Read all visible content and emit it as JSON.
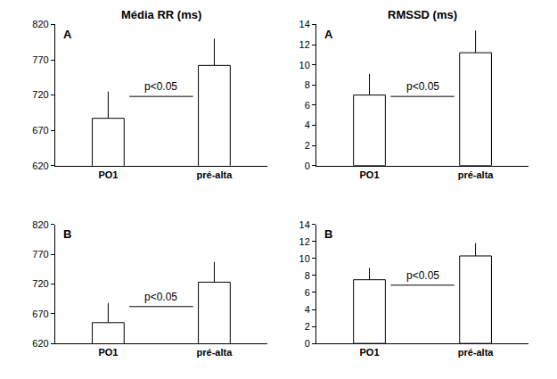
{
  "chart_data": [
    {
      "type": "bar",
      "title": "Média RR (ms)",
      "categories": [
        "PO1",
        "pré-alta"
      ],
      "values": [
        687,
        762
      ],
      "errors": [
        38,
        38
      ],
      "color": "#ffffff",
      "ylim": [
        620,
        820
      ],
      "yticks": [
        620,
        670,
        720,
        770,
        820
      ],
      "grid": false,
      "annotations": [
        {
          "text": "A"
        },
        {
          "text": "p<0.05"
        }
      ]
    },
    {
      "type": "bar",
      "title": "RMSSD (ms)",
      "categories": [
        "PO1",
        "pré-alta"
      ],
      "values": [
        7.0,
        11.2
      ],
      "errors": [
        2.1,
        2.2
      ],
      "color": "#ffffff",
      "ylim": [
        0,
        14
      ],
      "yticks": [
        0,
        2,
        4,
        6,
        8,
        10,
        12,
        14
      ],
      "grid": false,
      "annotations": [
        {
          "text": "A"
        },
        {
          "text": "p<0.05"
        }
      ]
    },
    {
      "type": "bar",
      "categories": [
        "PO1",
        "pré-alta"
      ],
      "values": [
        655,
        723
      ],
      "errors": [
        33,
        34
      ],
      "color": "#ffffff",
      "ylim": [
        620,
        820
      ],
      "yticks": [
        620,
        670,
        720,
        770,
        820
      ],
      "grid": false,
      "annotations": [
        {
          "text": "B"
        },
        {
          "text": "p<0.05"
        }
      ]
    },
    {
      "type": "bar",
      "categories": [
        "PO1",
        "pré-alta"
      ],
      "values": [
        7.5,
        10.3
      ],
      "errors": [
        1.4,
        1.5
      ],
      "color": "#ffffff",
      "ylim": [
        0,
        14
      ],
      "yticks": [
        0,
        2,
        4,
        6,
        8,
        10,
        12,
        14
      ],
      "grid": false,
      "annotations": [
        {
          "text": "B"
        },
        {
          "text": "p<0.05"
        }
      ]
    }
  ]
}
